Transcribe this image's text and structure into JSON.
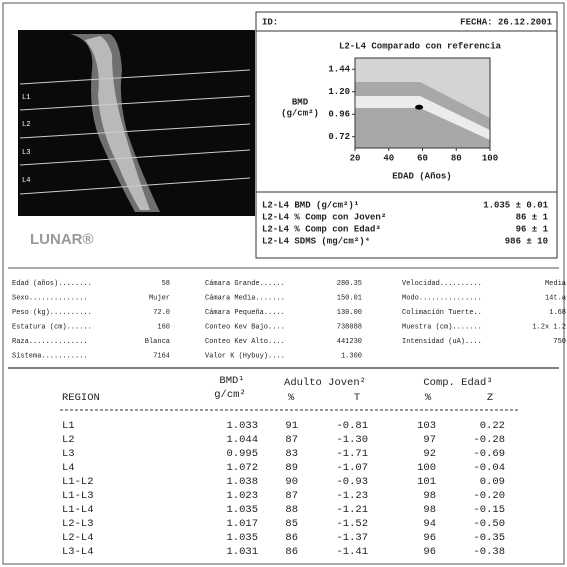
{
  "header": {
    "id_label": "ID:",
    "date": "FECHA: 26.12.2001"
  },
  "image": {
    "vertebra_labels": [
      "L1",
      "L2",
      "L3",
      "L4"
    ],
    "logo": "LUNAR®"
  },
  "reference_chart": {
    "title": "L2-L4 Comparado con referencia",
    "y_label_line1": "BMD",
    "y_label_line2": "(g/cm²)",
    "x_label": "EDAD (Años)",
    "ylim": [
      0.6,
      1.56
    ],
    "yticks": [
      1.44,
      {
        "value": 1.2,
        "label": "1.20"
      },
      0.96,
      0.72
    ],
    "xlim": [
      20,
      100
    ],
    "xticks": [
      20,
      40,
      60,
      80,
      100
    ]
  },
  "summary": [
    {
      "label": "L2-L4 BMD (g/cm²)¹",
      "value": "1.035 ± 0.01"
    },
    {
      "label": "L2-L4 % Comp con Joven²",
      "value": "86 ± 1"
    },
    {
      "label": "L2-L4 % Comp con Edad³",
      "value": "96 ± 1"
    },
    {
      "label": "L2-L4 SDMS (mg/cm²)⁴",
      "value": "986 ± 10"
    }
  ],
  "info": {
    "columns": [
      [
        {
          "label": "Edad (años)........",
          "value": 58
        },
        {
          "label": "Sexo..............",
          "value": "Mujer"
        },
        {
          "label": "Peso (kg)..........",
          "value": "72.0"
        },
        {
          "label": "Estatura (cm)......",
          "value": 160
        },
        {
          "label": "Raza..............",
          "value": "Blanca"
        },
        {
          "label": "Sistema...........",
          "value": 7164
        }
      ],
      [
        {
          "label": "Cámara Grande......",
          "value": "280.35"
        },
        {
          "label": "Cámara Media.......",
          "value": "150.01"
        },
        {
          "label": "Cámara Pequeña.....",
          "value": "130.00"
        },
        {
          "label": "Conteo Kev Bajo....",
          "value": 738088
        },
        {
          "label": "Conteo Kev Alto....",
          "value": 441230
        },
        {
          "label": "Valor K (Hybuy)....",
          "value": "1.300"
        }
      ],
      [
        {
          "label": "Velocidad..........",
          "value": "Media"
        },
        {
          "label": "Modo...............",
          "value": "14t.a"
        },
        {
          "label": "Colimación Tuerte..",
          "value": "1.68"
        },
        {
          "label": "Muestra (cm).......",
          "value": "1.2x 1.2"
        },
        {
          "label": "Intensidad (uA)....",
          "value": 750
        }
      ]
    ]
  },
  "results_table": {
    "headers": {
      "region": "REGION",
      "bmd": "BMD¹",
      "bmd_unit": "g/cm²",
      "young": "Adulto Joven²",
      "young_pct": "%",
      "young_score": "T",
      "age": "Comp. Edad³",
      "age_pct": "%",
      "age_score": "Z"
    },
    "rows": [
      [
        "L1",
        1.033,
        91,
        "-0.81",
        103,
        "0.22"
      ],
      [
        "L2",
        1.044,
        87,
        "-1.30",
        97,
        "-0.28"
      ],
      [
        "L3",
        0.995,
        83,
        "-1.71",
        92,
        "-0.69"
      ],
      [
        "L4",
        1.072,
        89,
        "-1.07",
        100,
        "-0.04"
      ],
      [
        "L1-L2",
        1.038,
        90,
        "-0.93",
        101,
        "0.09"
      ],
      [
        "L1-L3",
        1.023,
        87,
        "-1.23",
        98,
        "-0.20"
      ],
      [
        "L1-L4",
        1.035,
        88,
        "-1.21",
        98,
        "-0.15"
      ],
      [
        "L2-L3",
        1.017,
        85,
        "-1.52",
        94,
        "-0.50"
      ],
      [
        "L2-L4",
        1.035,
        86,
        "-1.37",
        96,
        "-0.35"
      ],
      [
        "L3-L4",
        1.031,
        86,
        "-1.41",
        96,
        "-0.38"
      ]
    ]
  }
}
